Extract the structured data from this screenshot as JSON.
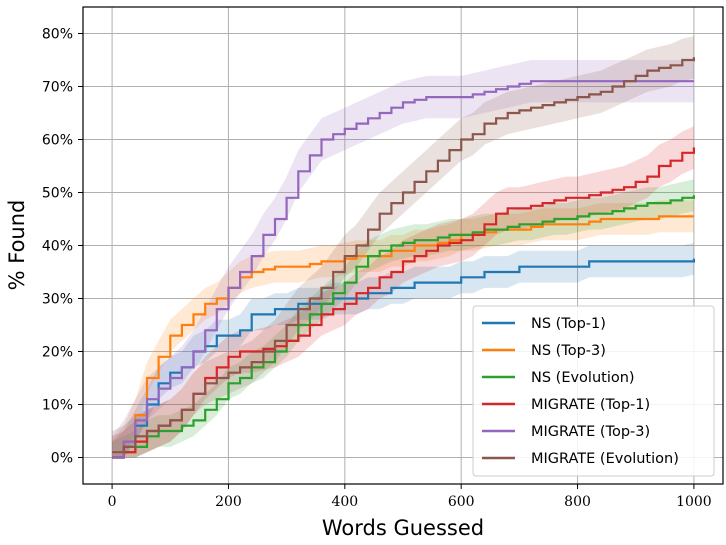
{
  "chart_data": {
    "type": "line",
    "title": "",
    "xlabel": "Words Guessed",
    "ylabel": "% Found",
    "xlim": [
      -50,
      1050
    ],
    "ylim": [
      -5,
      85
    ],
    "xticks": [
      0,
      200,
      400,
      600,
      800,
      1000
    ],
    "xtick_labels": [
      "0",
      "200",
      "400",
      "600",
      "800",
      "1000"
    ],
    "yticks": [
      0,
      10,
      20,
      30,
      40,
      50,
      60,
      70,
      80
    ],
    "ytick_labels": [
      "0%",
      "10%",
      "20%",
      "30%",
      "40%",
      "50%",
      "60%",
      "70%",
      "80%"
    ],
    "grid": true,
    "legend_position": "bottom-right",
    "series": [
      {
        "name": "NS (Top-1)",
        "color": "#1f77b4",
        "band": 3,
        "points": [
          [
            0,
            0
          ],
          [
            20,
            2
          ],
          [
            40,
            6
          ],
          [
            60,
            10
          ],
          [
            80,
            14
          ],
          [
            100,
            16
          ],
          [
            120,
            17
          ],
          [
            140,
            20
          ],
          [
            160,
            21
          ],
          [
            180,
            23
          ],
          [
            200,
            23
          ],
          [
            220,
            24
          ],
          [
            240,
            27
          ],
          [
            260,
            27
          ],
          [
            280,
            28
          ],
          [
            300,
            28
          ],
          [
            320,
            29
          ],
          [
            340,
            29
          ],
          [
            360,
            29
          ],
          [
            380,
            30
          ],
          [
            400,
            30
          ],
          [
            420,
            30
          ],
          [
            440,
            31
          ],
          [
            460,
            31
          ],
          [
            480,
            32
          ],
          [
            500,
            32
          ],
          [
            520,
            33
          ],
          [
            540,
            33
          ],
          [
            560,
            33
          ],
          [
            580,
            33
          ],
          [
            600,
            34
          ],
          [
            620,
            34
          ],
          [
            640,
            35
          ],
          [
            660,
            35
          ],
          [
            680,
            35
          ],
          [
            700,
            36
          ],
          [
            720,
            36
          ],
          [
            740,
            36
          ],
          [
            760,
            36
          ],
          [
            780,
            36
          ],
          [
            800,
            36
          ],
          [
            820,
            37
          ],
          [
            840,
            37
          ],
          [
            860,
            37
          ],
          [
            880,
            37
          ],
          [
            900,
            37
          ],
          [
            920,
            37
          ],
          [
            940,
            37
          ],
          [
            960,
            37
          ],
          [
            980,
            37
          ],
          [
            1000,
            37.5
          ]
        ]
      },
      {
        "name": "NS (Top-3)",
        "color": "#ff7f0e",
        "band": 3,
        "points": [
          [
            0,
            0
          ],
          [
            20,
            3
          ],
          [
            40,
            8
          ],
          [
            60,
            15
          ],
          [
            80,
            19
          ],
          [
            100,
            23
          ],
          [
            120,
            25
          ],
          [
            140,
            27
          ],
          [
            160,
            29
          ],
          [
            180,
            30
          ],
          [
            200,
            32
          ],
          [
            220,
            34
          ],
          [
            240,
            35
          ],
          [
            260,
            35.5
          ],
          [
            280,
            36
          ],
          [
            300,
            36
          ],
          [
            320,
            36
          ],
          [
            340,
            36.5
          ],
          [
            360,
            37
          ],
          [
            380,
            37
          ],
          [
            400,
            37.5
          ],
          [
            420,
            38
          ],
          [
            440,
            38
          ],
          [
            460,
            38
          ],
          [
            480,
            39
          ],
          [
            500,
            39
          ],
          [
            520,
            40
          ],
          [
            540,
            40
          ],
          [
            560,
            40.5
          ],
          [
            580,
            41
          ],
          [
            600,
            42
          ],
          [
            620,
            42
          ],
          [
            640,
            42.5
          ],
          [
            660,
            43
          ],
          [
            680,
            43
          ],
          [
            700,
            43
          ],
          [
            720,
            43.5
          ],
          [
            740,
            44
          ],
          [
            760,
            44
          ],
          [
            780,
            44
          ],
          [
            800,
            44
          ],
          [
            820,
            44.5
          ],
          [
            840,
            45
          ],
          [
            860,
            45
          ],
          [
            880,
            45
          ],
          [
            900,
            45
          ],
          [
            920,
            45
          ],
          [
            940,
            45.5
          ],
          [
            960,
            45.5
          ],
          [
            980,
            45.5
          ],
          [
            1000,
            45.5
          ]
        ]
      },
      {
        "name": "NS (Evolution)",
        "color": "#2ca02c",
        "band": 3,
        "points": [
          [
            0,
            0
          ],
          [
            20,
            1
          ],
          [
            40,
            2
          ],
          [
            60,
            4
          ],
          [
            80,
            5
          ],
          [
            100,
            5
          ],
          [
            120,
            6
          ],
          [
            140,
            7
          ],
          [
            160,
            9
          ],
          [
            180,
            11
          ],
          [
            200,
            14
          ],
          [
            220,
            15
          ],
          [
            240,
            17
          ],
          [
            260,
            18
          ],
          [
            280,
            20
          ],
          [
            300,
            22
          ],
          [
            320,
            25
          ],
          [
            340,
            27
          ],
          [
            360,
            29
          ],
          [
            380,
            31
          ],
          [
            400,
            33
          ],
          [
            420,
            36
          ],
          [
            440,
            38
          ],
          [
            460,
            39
          ],
          [
            480,
            40
          ],
          [
            500,
            40.5
          ],
          [
            520,
            41
          ],
          [
            540,
            41
          ],
          [
            560,
            41.5
          ],
          [
            580,
            42
          ],
          [
            600,
            42
          ],
          [
            620,
            42.5
          ],
          [
            640,
            43
          ],
          [
            660,
            43
          ],
          [
            680,
            43.5
          ],
          [
            700,
            44
          ],
          [
            720,
            44
          ],
          [
            740,
            44.5
          ],
          [
            760,
            45
          ],
          [
            780,
            45
          ],
          [
            800,
            45.5
          ],
          [
            820,
            46
          ],
          [
            840,
            46
          ],
          [
            860,
            46.5
          ],
          [
            880,
            47
          ],
          [
            900,
            47.5
          ],
          [
            920,
            48
          ],
          [
            940,
            48
          ],
          [
            960,
            48.5
          ],
          [
            980,
            49
          ],
          [
            1000,
            49.5
          ]
        ]
      },
      {
        "name": "MIGRATE (Top-1)",
        "color": "#d62728",
        "band": 4,
        "points": [
          [
            0,
            0
          ],
          [
            20,
            1
          ],
          [
            40,
            3
          ],
          [
            60,
            5
          ],
          [
            80,
            6
          ],
          [
            100,
            7
          ],
          [
            120,
            9
          ],
          [
            140,
            12
          ],
          [
            160,
            15
          ],
          [
            180,
            17
          ],
          [
            200,
            19
          ],
          [
            220,
            20
          ],
          [
            240,
            20
          ],
          [
            260,
            20.5
          ],
          [
            280,
            21
          ],
          [
            300,
            22
          ],
          [
            320,
            23
          ],
          [
            340,
            25
          ],
          [
            360,
            27
          ],
          [
            380,
            28
          ],
          [
            400,
            29
          ],
          [
            420,
            31
          ],
          [
            440,
            32
          ],
          [
            460,
            34
          ],
          [
            480,
            35
          ],
          [
            500,
            37
          ],
          [
            520,
            38
          ],
          [
            540,
            39
          ],
          [
            560,
            40
          ],
          [
            580,
            40.5
          ],
          [
            600,
            41
          ],
          [
            620,
            42
          ],
          [
            640,
            44
          ],
          [
            660,
            46
          ],
          [
            680,
            47
          ],
          [
            700,
            47
          ],
          [
            720,
            47.5
          ],
          [
            740,
            48
          ],
          [
            760,
            48.5
          ],
          [
            780,
            49
          ],
          [
            800,
            49
          ],
          [
            820,
            49.5
          ],
          [
            840,
            50
          ],
          [
            860,
            50.5
          ],
          [
            880,
            51
          ],
          [
            900,
            52
          ],
          [
            920,
            53
          ],
          [
            940,
            55
          ],
          [
            960,
            56
          ],
          [
            980,
            57.5
          ],
          [
            1000,
            58.5
          ]
        ]
      },
      {
        "name": "MIGRATE (Top-3)",
        "color": "#9467bd",
        "band": 4,
        "points": [
          [
            0,
            0
          ],
          [
            20,
            3
          ],
          [
            40,
            7
          ],
          [
            60,
            11
          ],
          [
            80,
            13
          ],
          [
            100,
            15
          ],
          [
            120,
            17
          ],
          [
            140,
            20
          ],
          [
            160,
            24
          ],
          [
            180,
            28
          ],
          [
            200,
            32
          ],
          [
            220,
            35
          ],
          [
            240,
            38
          ],
          [
            260,
            42
          ],
          [
            280,
            45
          ],
          [
            300,
            49
          ],
          [
            320,
            54
          ],
          [
            340,
            57
          ],
          [
            360,
            60
          ],
          [
            380,
            61
          ],
          [
            400,
            62
          ],
          [
            420,
            63
          ],
          [
            440,
            64
          ],
          [
            460,
            65
          ],
          [
            480,
            66
          ],
          [
            500,
            67
          ],
          [
            520,
            67.5
          ],
          [
            540,
            68
          ],
          [
            560,
            68
          ],
          [
            580,
            68
          ],
          [
            600,
            68
          ],
          [
            620,
            68.5
          ],
          [
            640,
            69
          ],
          [
            660,
            69.5
          ],
          [
            680,
            70
          ],
          [
            700,
            70.5
          ],
          [
            720,
            71
          ],
          [
            740,
            71
          ],
          [
            760,
            71
          ],
          [
            780,
            71
          ],
          [
            800,
            71
          ],
          [
            820,
            71
          ],
          [
            840,
            71
          ],
          [
            860,
            71
          ],
          [
            880,
            71
          ],
          [
            900,
            71
          ],
          [
            920,
            71
          ],
          [
            940,
            71
          ],
          [
            960,
            71
          ],
          [
            980,
            71
          ],
          [
            1000,
            71
          ]
        ]
      },
      {
        "name": "MIGRATE (Evolution)",
        "color": "#8c564b",
        "band": 4,
        "points": [
          [
            0,
            1
          ],
          [
            20,
            2
          ],
          [
            40,
            4
          ],
          [
            60,
            5
          ],
          [
            80,
            6
          ],
          [
            100,
            7
          ],
          [
            120,
            9
          ],
          [
            140,
            12
          ],
          [
            160,
            14
          ],
          [
            180,
            15
          ],
          [
            200,
            16
          ],
          [
            220,
            17
          ],
          [
            240,
            18
          ],
          [
            260,
            20
          ],
          [
            280,
            22
          ],
          [
            300,
            25
          ],
          [
            320,
            28
          ],
          [
            340,
            30
          ],
          [
            360,
            32
          ],
          [
            380,
            35
          ],
          [
            400,
            38
          ],
          [
            420,
            40
          ],
          [
            440,
            43
          ],
          [
            460,
            46
          ],
          [
            480,
            48
          ],
          [
            500,
            50
          ],
          [
            520,
            52
          ],
          [
            540,
            54
          ],
          [
            560,
            56
          ],
          [
            580,
            58
          ],
          [
            600,
            60
          ],
          [
            620,
            61
          ],
          [
            640,
            63
          ],
          [
            660,
            64
          ],
          [
            680,
            65
          ],
          [
            700,
            65.5
          ],
          [
            720,
            66
          ],
          [
            740,
            66.5
          ],
          [
            760,
            67
          ],
          [
            780,
            67.5
          ],
          [
            800,
            68
          ],
          [
            820,
            68.5
          ],
          [
            840,
            69
          ],
          [
            860,
            70
          ],
          [
            880,
            71
          ],
          [
            900,
            72
          ],
          [
            920,
            73
          ],
          [
            940,
            73.5
          ],
          [
            960,
            74
          ],
          [
            980,
            75
          ],
          [
            1000,
            75.5
          ]
        ]
      }
    ]
  },
  "legend": {
    "entries": [
      "NS (Top-1)",
      "NS (Top-3)",
      "NS (Evolution)",
      "MIGRATE (Top-1)",
      "MIGRATE (Top-3)",
      "MIGRATE (Evolution)"
    ]
  }
}
